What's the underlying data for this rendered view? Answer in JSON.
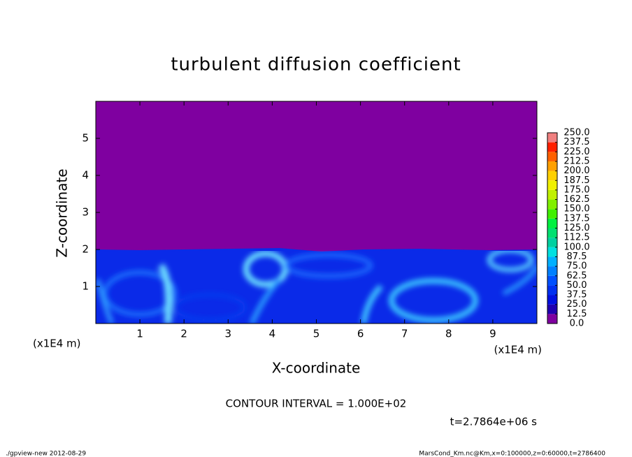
{
  "chart_data": {
    "type": "contour",
    "title": "turbulent diffusion coefficient",
    "xlabel": "X-coordinate",
    "ylabel": "Z-coordinate",
    "xunit": "(x1E4 m)",
    "yunit": "(x1E4 m)",
    "xlim": [
      0,
      10
    ],
    "ylim": [
      0,
      6
    ],
    "xticks": [
      1,
      2,
      3,
      4,
      5,
      6,
      7,
      8,
      9
    ],
    "yticks": [
      1,
      2,
      3,
      4,
      5
    ],
    "levels": [
      {
        "value": 0,
        "label": "0.0"
      },
      12.5,
      {
        "value": 25,
        "label": "25.0"
      },
      37.5,
      {
        "value": 50,
        "label": "50.0"
      },
      62.5,
      {
        "value": 75,
        "label": "75.0"
      },
      87.5,
      {
        "value": 100,
        "label": "100.0"
      },
      112.5,
      {
        "value": 125,
        "label": "125.0"
      },
      137.5,
      {
        "value": 150,
        "label": "150.0"
      },
      162.5,
      {
        "value": 175,
        "label": "175.0"
      },
      187.5,
      {
        "value": 200,
        "label": "200.0"
      },
      212.5,
      {
        "value": 225,
        "label": "225.0"
      },
      237.5,
      {
        "value": 250,
        "label": "250.0"
      }
    ],
    "colors": [
      "#7f00a0",
      "#2000b0",
      "#0010e0",
      "#0030f0",
      "#0050ff",
      "#0080ff",
      "#00b0ff",
      "#00e0e0",
      "#00d0a0",
      "#00e070",
      "#00f040",
      "#40f000",
      "#80f000",
      "#c0f000",
      "#f0f000",
      "#ffd000",
      "#ffa000",
      "#ff6000",
      "#ff2000",
      "#f08080"
    ],
    "annotations": {
      "contour_interval": "CONTOUR INTERVAL = 1.000E+02",
      "time": "t=2.7864e+06 s",
      "footer_left": "./gpview-new  2012-08-29",
      "footer_right": "MarsCond_Km.nc@Km,x=0:100000,z=0:60000,t=2786400"
    }
  }
}
